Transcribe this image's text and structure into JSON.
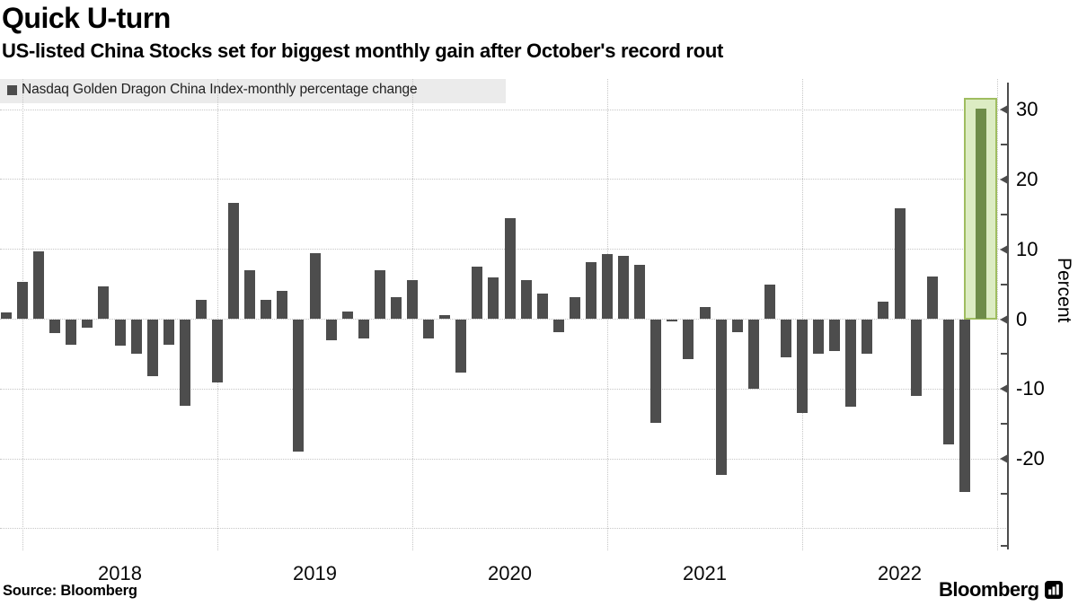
{
  "title": "Quick U-turn",
  "subtitle": "US-listed China Stocks set for biggest monthly gain after October's record rout",
  "legend": {
    "label": "Nasdaq Golden Dragon China Index-monthly percentage change",
    "swatch_color": "#4d4d4d"
  },
  "source": "Source: Bloomberg",
  "branding": "Bloomberg",
  "colors": {
    "bar": "#4d4d4d",
    "highlight_bar": "#6e8c49",
    "highlight_box_fill": "#dcecc3",
    "highlight_box_border": "#9fbd60",
    "legend_background": "#ebebeb",
    "gridline": "#c6c6c6",
    "axis": "#4d4d4d"
  },
  "chart_data": {
    "type": "bar",
    "title": "Quick U-turn",
    "subtitle": "US-listed China Stocks set for biggest monthly gain after October's record rout",
    "series_name": "Nasdaq Golden Dragon China Index-monthly percentage change",
    "ylabel": "Percent",
    "xlabel": "",
    "grid": "dotted",
    "legend_position": "top-left",
    "ylim": [
      -33,
      33
    ],
    "y_ticks": [
      30,
      20,
      10,
      0,
      -10,
      -20
    ],
    "y_minor_ticks": [
      25,
      15,
      5,
      -5,
      -15,
      -25
    ],
    "x_year_labels": [
      "2018",
      "2019",
      "2020",
      "2021",
      "2022"
    ],
    "x": [
      "2017-11",
      "2017-12",
      "2018-01",
      "2018-02",
      "2018-03",
      "2018-04",
      "2018-05",
      "2018-06",
      "2018-07",
      "2018-08",
      "2018-09",
      "2018-10",
      "2018-11",
      "2018-12",
      "2019-01",
      "2019-02",
      "2019-03",
      "2019-04",
      "2019-05",
      "2019-06",
      "2019-07",
      "2019-08",
      "2019-09",
      "2019-10",
      "2019-11",
      "2019-12",
      "2020-01",
      "2020-02",
      "2020-03",
      "2020-04",
      "2020-05",
      "2020-06",
      "2020-07",
      "2020-08",
      "2020-09",
      "2020-10",
      "2020-11",
      "2020-12",
      "2021-01",
      "2021-02",
      "2021-03",
      "2021-04",
      "2021-05",
      "2021-06",
      "2021-07",
      "2021-08",
      "2021-09",
      "2021-10",
      "2021-11",
      "2021-12",
      "2022-01",
      "2022-02",
      "2022-03",
      "2022-04",
      "2022-05",
      "2022-06",
      "2022-07",
      "2022-08",
      "2022-09",
      "2022-10",
      "2022-11"
    ],
    "values": [
      0.9,
      5.3,
      9.7,
      -2.0,
      -3.7,
      -1.2,
      4.7,
      -3.8,
      -4.9,
      -8.2,
      -3.6,
      -12.4,
      2.8,
      -9.0,
      16.7,
      7.0,
      2.8,
      4.1,
      -18.9,
      9.4,
      -3.0,
      1.1,
      -2.7,
      7.0,
      3.1,
      5.6,
      -2.7,
      0.6,
      -7.7,
      7.5,
      6.0,
      14.4,
      5.6,
      3.6,
      -1.9,
      3.1,
      8.1,
      9.3,
      9.0,
      7.8,
      -14.8,
      -0.3,
      -5.7,
      1.7,
      -22.3,
      -1.8,
      -10.0,
      5.0,
      -5.4,
      -13.4,
      -5.0,
      -4.6,
      -12.5,
      -5.0,
      2.5,
      15.9,
      -11.0,
      6.1,
      -17.9,
      -24.8,
      30.1
    ],
    "highlight": {
      "month": "2022-11",
      "index": 60,
      "value": 30.1,
      "box_top_value": 31.7,
      "note": "latest month highlighted with green box"
    }
  }
}
